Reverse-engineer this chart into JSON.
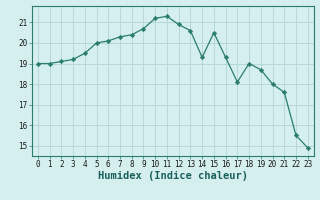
{
  "x": [
    0,
    1,
    2,
    3,
    4,
    5,
    6,
    7,
    8,
    9,
    10,
    11,
    12,
    13,
    14,
    15,
    16,
    17,
    18,
    19,
    20,
    21,
    22,
    23
  ],
  "y": [
    19.0,
    19.0,
    19.1,
    19.2,
    19.5,
    20.0,
    20.1,
    20.3,
    20.4,
    20.7,
    21.2,
    21.3,
    20.9,
    20.6,
    19.3,
    20.5,
    19.3,
    18.1,
    19.0,
    18.7,
    18.0,
    17.6,
    15.5,
    14.9
  ],
  "line_color": "#2a7d6e",
  "marker": "D",
  "marker_size": 2.2,
  "bg_color": "#d5efef",
  "grid_color": "#b8d8d8",
  "xlabel": "Humidex (Indice chaleur)",
  "xlim": [
    -0.5,
    23.5
  ],
  "ylim": [
    14.5,
    21.8
  ],
  "yticks": [
    15,
    16,
    17,
    18,
    19,
    20,
    21
  ],
  "xticks": [
    0,
    1,
    2,
    3,
    4,
    5,
    6,
    7,
    8,
    9,
    10,
    11,
    12,
    13,
    14,
    15,
    16,
    17,
    18,
    19,
    20,
    21,
    22,
    23
  ],
  "tick_fontsize": 5.5,
  "xlabel_fontsize": 7.5
}
